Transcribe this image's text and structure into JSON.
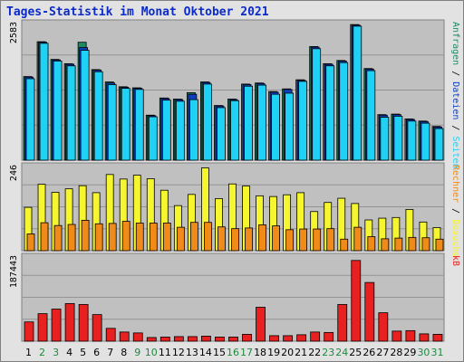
{
  "title": "Tages-Statistik im Monat Oktober 2021",
  "colors": {
    "background": "#e2e2e2",
    "plot_bg": "#c0c0c0",
    "grid": "#949494",
    "title": "#0b2bc8",
    "anfragen": "#1e8a63",
    "dateien": "#0f3fc0",
    "seiten": "#1fd2f5",
    "besuche": "#f5f530",
    "rechner": "#f08a18",
    "kb": "#e82020",
    "day_normal": "#000000",
    "day_weekend": "#1e8a3f"
  },
  "chart_data": [
    {
      "type": "bar",
      "panel": "top",
      "ymax_label": "2583",
      "ylim": [
        0,
        2583
      ],
      "right_labels": [
        {
          "text": "Anfragen",
          "color": "#1e8a63"
        },
        {
          "text": "Dateien",
          "color": "#0f3fc0"
        },
        {
          "text": "Seiten",
          "color": "#1fd2f5"
        }
      ],
      "series": [
        {
          "name": "Anfragen",
          "values": [
            1560,
            2210,
            1880,
            1800,
            2200,
            1690,
            1460,
            1370,
            1350,
            840,
            1160,
            1140,
            1260,
            1460,
            1020,
            1140,
            1420,
            1440,
            1280,
            1330,
            1500,
            2120,
            1800,
            1860,
            2530,
            1710,
            850,
            860,
            770,
            730,
            630
          ]
        },
        {
          "name": "Dateien",
          "values": [
            1550,
            2200,
            1870,
            1790,
            2100,
            1680,
            1440,
            1360,
            1340,
            830,
            1150,
            1130,
            1230,
            1450,
            1010,
            1130,
            1410,
            1430,
            1270,
            1320,
            1490,
            2110,
            1790,
            1850,
            2520,
            1700,
            840,
            850,
            760,
            720,
            620
          ]
        },
        {
          "name": "Seiten",
          "values": [
            1520,
            2180,
            1850,
            1760,
            2050,
            1650,
            1410,
            1340,
            1320,
            810,
            1120,
            1100,
            1130,
            1420,
            980,
            1110,
            1380,
            1400,
            1230,
            1250,
            1470,
            2080,
            1760,
            1820,
            2500,
            1670,
            800,
            820,
            730,
            690,
            590
          ]
        }
      ]
    },
    {
      "type": "bar",
      "panel": "middle",
      "ymax_label": "246",
      "ylim": [
        0,
        246
      ],
      "right_labels": [
        {
          "text": "Rechner",
          "color": "#f08a18"
        },
        {
          "text": "Besuche",
          "color": "#f5f530"
        }
      ],
      "series": [
        {
          "name": "Rechner",
          "values": [
            48,
            80,
            72,
            75,
            87,
            77,
            78,
            84,
            79,
            79,
            79,
            67,
            81,
            81,
            68,
            63,
            65,
            74,
            71,
            60,
            62,
            62,
            63,
            33,
            67,
            40,
            34,
            36,
            38,
            37,
            33
          ]
        },
        {
          "name": "Besuche",
          "values": [
            124,
            190,
            167,
            177,
            186,
            166,
            218,
            205,
            216,
            206,
            173,
            129,
            161,
            237,
            149,
            191,
            185,
            157,
            155,
            160,
            166,
            112,
            138,
            150,
            135,
            88,
            93,
            95,
            118,
            82,
            66
          ]
        }
      ]
    },
    {
      "type": "bar",
      "panel": "bottom",
      "ymax_label": "187443",
      "ylim": [
        0,
        187443
      ],
      "right_labels": [
        {
          "text": "kB",
          "color": "#e82020"
        }
      ],
      "series": [
        {
          "name": "kB",
          "values": [
            42000,
            60000,
            70000,
            82000,
            80000,
            58000,
            28000,
            20000,
            18000,
            8000,
            9000,
            10000,
            10000,
            11000,
            9000,
            9000,
            15000,
            74000,
            12000,
            12000,
            14000,
            20000,
            19000,
            80000,
            176000,
            128000,
            62000,
            22000,
            23000,
            16000,
            15000
          ]
        }
      ]
    }
  ],
  "days": [
    "1",
    "2",
    "3",
    "4",
    "5",
    "6",
    "7",
    "8",
    "9",
    "10",
    "11",
    "12",
    "13",
    "14",
    "15",
    "16",
    "17",
    "18",
    "19",
    "20",
    "21",
    "22",
    "23",
    "24",
    "25",
    "26",
    "27",
    "28",
    "29",
    "30",
    "31"
  ],
  "weekend_days": [
    2,
    3,
    9,
    10,
    16,
    17,
    23,
    24,
    30,
    31
  ]
}
